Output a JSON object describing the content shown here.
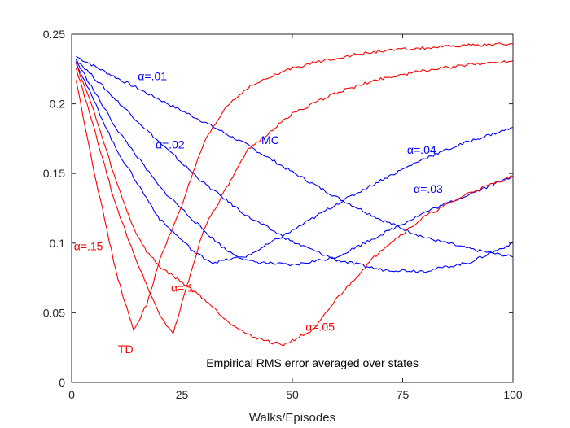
{
  "chart_data": {
    "type": "line",
    "title": "",
    "xlabel": "Walks/Episodes",
    "ylabel": "",
    "xlim": [
      0,
      100
    ],
    "ylim": [
      0,
      0.25
    ],
    "x_ticks": [
      "0",
      "25",
      "50",
      "75",
      "100"
    ],
    "y_ticks": [
      "0",
      "0.05",
      "0.1",
      "0.15",
      "0.2",
      "0.25"
    ],
    "grid": false,
    "colors": {
      "MC": "#0000ff",
      "TD": "#ff0000"
    },
    "annotations": [
      {
        "text": "α=.01",
        "group": "MC",
        "x": 15,
        "y": 0.217
      },
      {
        "text": "α=.02",
        "group": "MC",
        "x": 19,
        "y": 0.168
      },
      {
        "text": "MC",
        "group": "MC",
        "x": 43,
        "y": 0.171
      },
      {
        "text": "α=.04",
        "group": "MC",
        "x": 76,
        "y": 0.164
      },
      {
        "text": "α=.03",
        "group": "MC",
        "x": 77.5,
        "y": 0.136
      },
      {
        "text": "α=.15",
        "group": "TD",
        "x": 0.5,
        "y": 0.095
      },
      {
        "text": "α=.1",
        "group": "TD",
        "x": 22.5,
        "y": 0.065
      },
      {
        "text": "TD",
        "group": "TD",
        "x": 10.5,
        "y": 0.021
      },
      {
        "text": "α=.05",
        "group": "TD",
        "x": 53,
        "y": 0.037
      },
      {
        "text": "Empirical RMS error averaged over states",
        "group": "note",
        "x": 30.5,
        "y": 0.011
      }
    ],
    "series": [
      {
        "group": "MC",
        "x": [
          1,
          10,
          20,
          30,
          40,
          50,
          60,
          70,
          80,
          90,
          100
        ],
        "y": [
          0.234,
          0.219,
          0.203,
          0.187,
          0.17,
          0.151,
          0.133,
          0.117,
          0.104,
          0.096,
          0.09
        ]
      },
      {
        "group": "MC",
        "x": [
          1,
          10,
          20,
          30,
          40,
          50,
          60,
          70,
          80,
          90,
          100
        ],
        "y": [
          0.232,
          0.203,
          0.172,
          0.143,
          0.119,
          0.101,
          0.088,
          0.081,
          0.08,
          0.086,
          0.1
        ]
      },
      {
        "group": "MC",
        "x": [
          1,
          10,
          20,
          30,
          35,
          40,
          50,
          60,
          70,
          80,
          90,
          100
        ],
        "y": [
          0.231,
          0.183,
          0.14,
          0.109,
          0.095,
          0.087,
          0.084,
          0.09,
          0.106,
          0.122,
          0.135,
          0.148
        ]
      },
      {
        "group": "MC",
        "x": [
          1,
          10,
          20,
          28,
          32,
          40,
          50,
          60,
          70,
          80,
          90,
          100
        ],
        "y": [
          0.23,
          0.168,
          0.117,
          0.093,
          0.086,
          0.091,
          0.109,
          0.128,
          0.145,
          0.161,
          0.173,
          0.183
        ]
      },
      {
        "group": "TD",
        "x": [
          1,
          5,
          10,
          14,
          17,
          20,
          25,
          30,
          35,
          40,
          45,
          48,
          55,
          60,
          70,
          80,
          90,
          100
        ],
        "y": [
          0.229,
          0.195,
          0.145,
          0.111,
          0.094,
          0.083,
          0.072,
          0.06,
          0.045,
          0.034,
          0.029,
          0.027,
          0.038,
          0.06,
          0.095,
          0.119,
          0.136,
          0.148
        ]
      },
      {
        "group": "TD",
        "x": [
          1,
          5,
          10,
          15,
          20,
          23,
          25,
          30,
          40,
          50,
          60,
          70,
          80,
          90,
          100
        ],
        "y": [
          0.226,
          0.183,
          0.127,
          0.085,
          0.048,
          0.035,
          0.057,
          0.111,
          0.167,
          0.193,
          0.208,
          0.218,
          0.224,
          0.228,
          0.231
        ]
      },
      {
        "group": "TD",
        "x": [
          1,
          5,
          10,
          14,
          17,
          20,
          25,
          30,
          35,
          40,
          50,
          60,
          70,
          80,
          90,
          100
        ],
        "y": [
          0.217,
          0.153,
          0.08,
          0.037,
          0.056,
          0.088,
          0.128,
          0.172,
          0.198,
          0.212,
          0.226,
          0.233,
          0.238,
          0.24,
          0.242,
          0.243
        ]
      }
    ]
  }
}
